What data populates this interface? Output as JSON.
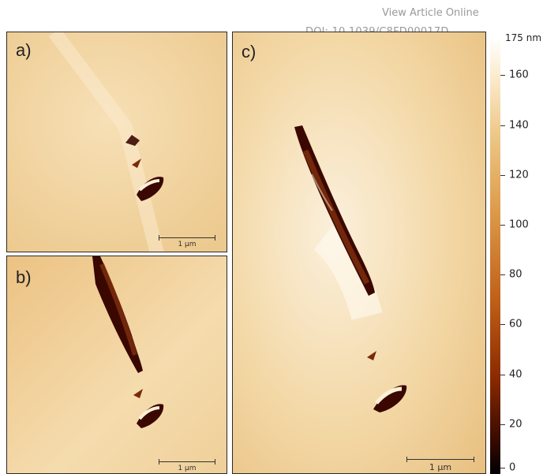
{
  "header": {
    "view_article": "View Article Online",
    "doi": "DOI: 10.1039/C8FD00017D"
  },
  "panels": {
    "a": {
      "label": "a)",
      "scale_label": "1 μm"
    },
    "b": {
      "label": "b)",
      "scale_label": "1 μm"
    },
    "c": {
      "label": "c)",
      "scale_label": "1 μm"
    }
  },
  "colorbar": {
    "unit_label": "175 nm",
    "ticks": [
      "160",
      "140",
      "120",
      "100",
      "80",
      "60",
      "40",
      "20",
      "0"
    ]
  },
  "colors": {
    "background_afm": "#f2d7a6",
    "defect_dark": "#3a0800",
    "defect_mid": "#8a3410"
  }
}
